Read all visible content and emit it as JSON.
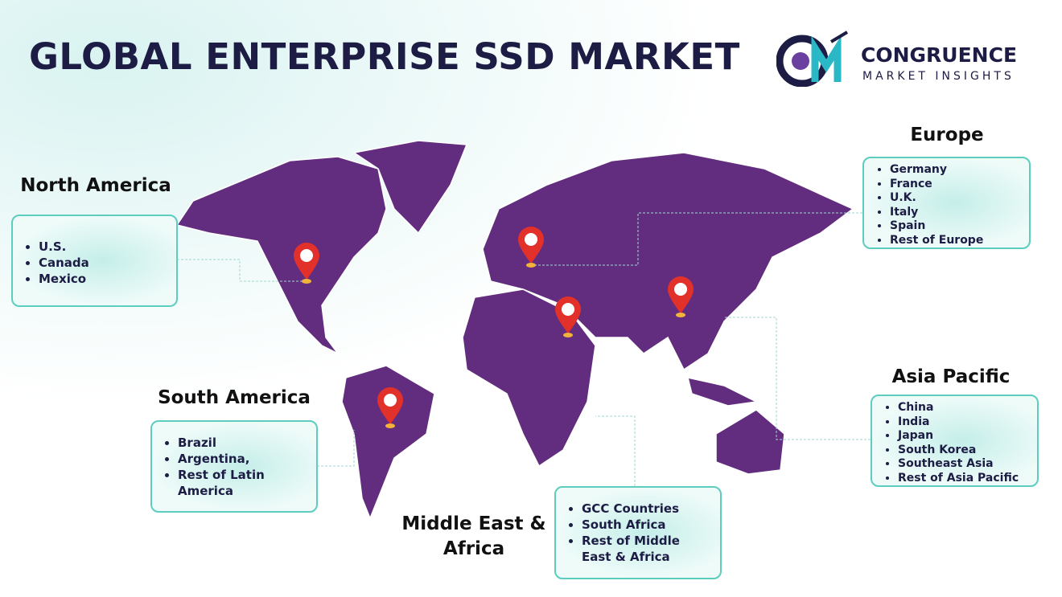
{
  "title": "GLOBAL ENTERPRISE SSD MARKET",
  "logo": {
    "name": "CONGRUENCE",
    "tagline": "MARKET INSIGHTS"
  },
  "regions": [
    {
      "name": "North America",
      "items": [
        "U.S.",
        "Canada",
        "Mexico"
      ]
    },
    {
      "name": "Europe",
      "items": [
        "Germany",
        "France",
        "U.K.",
        "Italy",
        "Spain",
        "Rest of Europe"
      ]
    },
    {
      "name": "Asia Pacific",
      "items": [
        "China",
        "India",
        "Japan",
        "South Korea",
        "Southeast Asia",
        "Rest of Asia Pacific"
      ]
    },
    {
      "name": "South America",
      "items": [
        "Brazil",
        "Argentina,",
        "Rest of Latin America"
      ]
    },
    {
      "name": "Middle East & Africa",
      "items": [
        "GCC Countries",
        "South Africa",
        "Rest of Middle East & Africa"
      ]
    }
  ]
}
